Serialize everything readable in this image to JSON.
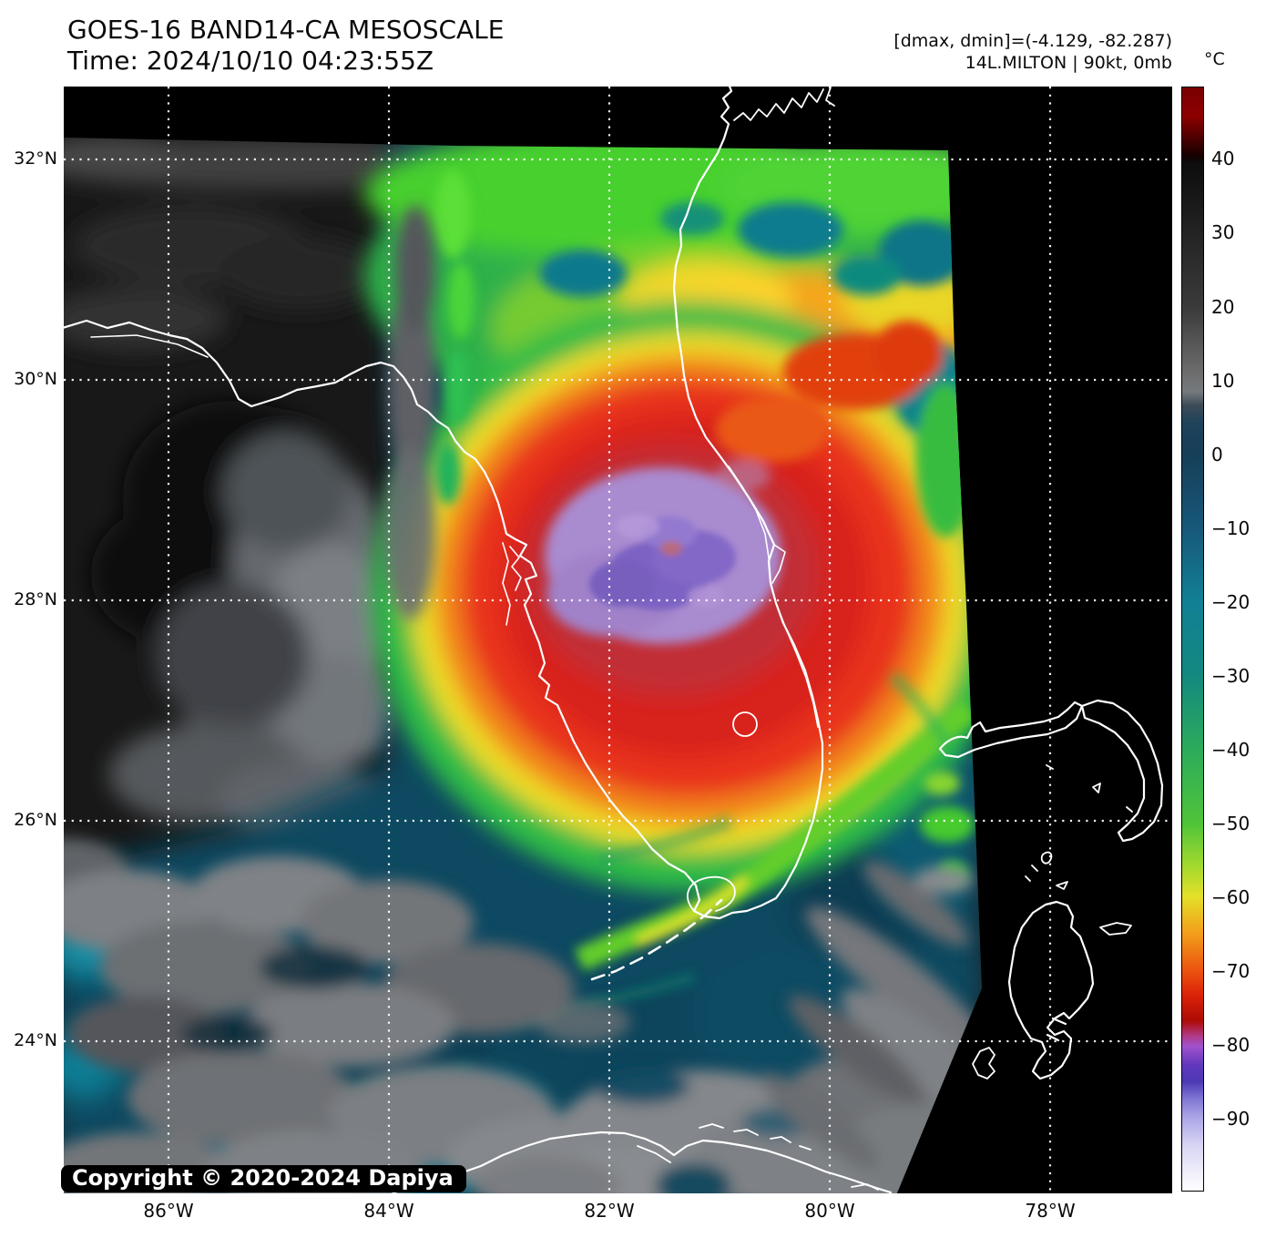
{
  "header": {
    "title_line1": "GOES-16 BAND14-CA MESOSCALE",
    "title_line2": "Time: 2024/10/10 04:23:55Z"
  },
  "annotations": {
    "dmax_dmin": "[dmax, dmin]=(-4.129, -82.287)",
    "storm_info": "14L.MILTON | 90kt, 0mb"
  },
  "colorbar": {
    "unit": "°C",
    "ticks": [
      "40",
      "30",
      "20",
      "10",
      "0",
      "−10",
      "−20",
      "−30",
      "−40",
      "−50",
      "−60",
      "−70",
      "−80",
      "−90"
    ]
  },
  "axes": {
    "lat_labels": [
      "32°N",
      "30°N",
      "28°N",
      "26°N",
      "24°N"
    ],
    "lon_labels": [
      "86°W",
      "84°W",
      "82°W",
      "80°W",
      "78°W"
    ]
  },
  "map": {
    "copyright": "Copyright © 2020-2024 Dapiya"
  },
  "colors": {
    "page_background": "#ffffff",
    "plot_background": "#000000",
    "coastline": "#ffffff",
    "graticule": "#ffffff",
    "warm_ocean_gray": "#181818",
    "cold_base_teal": "#0d4961",
    "outflow_green": "#2fb148",
    "anvil_orange": "#f2831a",
    "cdo_red": "#e8331b",
    "core_purple": "#a98bd0"
  }
}
